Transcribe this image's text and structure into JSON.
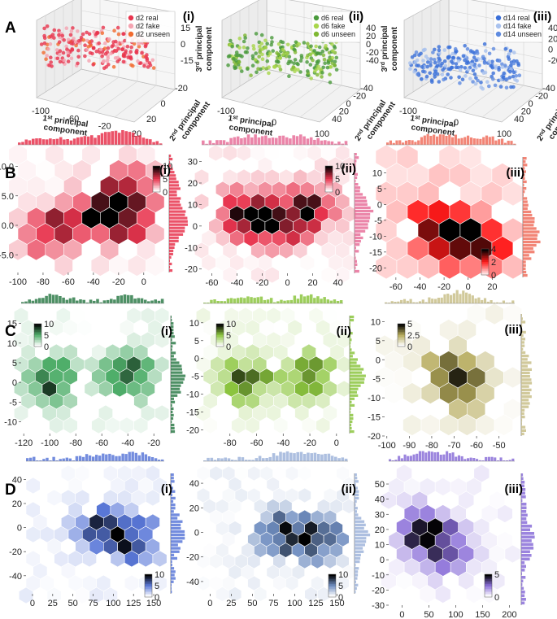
{
  "panel_labels": [
    "A",
    "B",
    "C",
    "D"
  ],
  "roman": [
    "(i)",
    "(ii)",
    "(iii)"
  ],
  "chart_data": [
    {
      "type": "scatter",
      "id": "A-i",
      "panel": "A",
      "roman": "(i)",
      "zlabel": "3rd principal component",
      "zlabel_parts": [
        "3",
        "rd",
        "principal",
        "component"
      ],
      "xlabel_parts": [
        "1",
        "st",
        "principal",
        "component"
      ],
      "ylabel_parts": [
        "2",
        "nd",
        "principal",
        "component"
      ],
      "xticks": [
        "-100",
        "-60",
        "-20",
        "20"
      ],
      "yticks": [
        "20",
        "0",
        "-20"
      ],
      "zticks": [
        "15",
        "0",
        "-15"
      ],
      "legend": [
        {
          "label": "d2 real",
          "color": "#e8344e"
        },
        {
          "label": "d2 fake",
          "color": "#f5a3b0"
        },
        {
          "label": "d2 unseen",
          "color": "#f26a2e"
        }
      ]
    },
    {
      "type": "scatter",
      "id": "A-ii",
      "panel": "A",
      "roman": "(ii)",
      "zlabel_parts": [
        "3",
        "rd",
        "principal",
        "component"
      ],
      "xlabel_parts": [
        "1",
        "st",
        "principal",
        "component"
      ],
      "ylabel_parts": [
        "2",
        "nd",
        "principal",
        "component"
      ],
      "xticks": [
        "-100",
        "0",
        "100"
      ],
      "yticks": [
        "40",
        "20",
        "0",
        "-20",
        "-40"
      ],
      "zticks": [
        "40",
        "20",
        "0",
        "-20",
        "-40"
      ],
      "legend": [
        {
          "label": "d6 real",
          "color": "#4a9a3c"
        },
        {
          "label": "d6 fake",
          "color": "#a8d64a"
        },
        {
          "label": "d6 unseen",
          "color": "#7fb832"
        }
      ]
    },
    {
      "type": "scatter",
      "id": "A-iii",
      "panel": "A",
      "roman": "(iii)",
      "zlabel_parts": [
        "3",
        "rd",
        "principal",
        "component"
      ],
      "xlabel_parts": [
        "1",
        "st",
        "principal",
        "component"
      ],
      "ylabel_parts": [
        "2",
        "nd",
        "principal",
        "component"
      ],
      "xticks": [
        "-100",
        "0",
        "100"
      ],
      "yticks": [
        "40",
        "20",
        "0",
        "-20",
        "-40"
      ],
      "zticks": [
        "40",
        "20",
        "0",
        "-20"
      ],
      "legend": [
        {
          "label": "d14 real",
          "color": "#3a6fd8"
        },
        {
          "label": "d14 fake",
          "color": "#a9c2ee"
        },
        {
          "label": "d14 unseen",
          "color": "#5f8be0"
        }
      ]
    },
    {
      "type": "heatmap",
      "id": "B-i",
      "panel": "B",
      "roman": "(i)",
      "xlim": [
        -100,
        15
      ],
      "ylim": [
        -8,
        12
      ],
      "xticks": [
        -100,
        -80,
        -60,
        -40,
        -20,
        0
      ],
      "yticks": [
        -5,
        0,
        5,
        10
      ],
      "ytick_labels": [
        "-5.0",
        "0.0",
        "5.0",
        "10.0"
      ],
      "cbar": {
        "ticks": [
          10,
          5,
          0
        ],
        "colors": [
          "#ffffff",
          "#e8344e",
          "#000000"
        ]
      }
    },
    {
      "type": "heatmap",
      "id": "B-ii",
      "panel": "B",
      "roman": "(ii)",
      "xlim": [
        -68,
        48
      ],
      "ylim": [
        -22,
        34
      ],
      "xticks": [
        -60,
        -40,
        -20,
        0,
        20,
        40
      ],
      "yticks": [
        -20,
        -10,
        0,
        10,
        20,
        30
      ],
      "cbar": {
        "ticks": [
          10,
          5,
          0
        ],
        "colors": [
          "#ffffff",
          "#e8344e",
          "#000000"
        ]
      }
    },
    {
      "type": "heatmap",
      "id": "B-iii",
      "panel": "B",
      "roman": "(iii)",
      "xlim": [
        -68,
        40
      ],
      "ylim": [
        -23,
        15
      ],
      "xticks": [
        -60,
        -40,
        -20,
        0,
        20
      ],
      "yticks": [
        -20,
        -15,
        -10,
        -5,
        0,
        5,
        10
      ],
      "cbar": {
        "ticks": [
          4,
          2,
          0
        ],
        "colors": [
          "#ffe6e6",
          "#ff1a1a",
          "#000000"
        ]
      }
    },
    {
      "type": "heatmap",
      "id": "C-i",
      "panel": "C",
      "roman": "(i)",
      "xlim": [
        -122,
        -12
      ],
      "ylim": [
        -13,
        17
      ],
      "xticks": [
        -120,
        -100,
        -80,
        -60,
        -40,
        -20
      ],
      "yticks": [
        -10,
        -5,
        0,
        5,
        10,
        15
      ],
      "cbar": {
        "ticks": [
          10,
          5,
          0
        ],
        "colors": [
          "#ffffff",
          "#4fae6a",
          "#000000"
        ]
      }
    },
    {
      "type": "heatmap",
      "id": "C-ii",
      "panel": "C",
      "roman": "(ii)",
      "xlim": [
        -100,
        5
      ],
      "ylim": [
        -21,
        12
      ],
      "xticks": [
        -80,
        -60,
        -40,
        -20,
        0
      ],
      "yticks": [
        -20,
        -15,
        -10,
        -5,
        0,
        5,
        10
      ],
      "cbar": {
        "ticks": [
          10,
          5,
          0
        ],
        "colors": [
          "#ffffff",
          "#8cc63f",
          "#000000"
        ]
      }
    },
    {
      "type": "heatmap",
      "id": "C-iii",
      "panel": "C",
      "roman": "(iii)",
      "xlim": [
        -101,
        -43
      ],
      "ylim": [
        -20,
        12
      ],
      "xticks": [
        -100,
        -90,
        -80,
        -70,
        -60,
        -50
      ],
      "yticks": [
        -20,
        -15,
        -10,
        -5,
        0,
        5,
        10
      ],
      "cbar": {
        "ticks": [
          5,
          2.5,
          0
        ],
        "colors": [
          "#ffffff",
          "#b5aa5a",
          "#000000"
        ]
      }
    },
    {
      "type": "heatmap",
      "id": "D-i",
      "panel": "D",
      "roman": "(i)",
      "xlim": [
        -8,
        163
      ],
      "ylim": [
        -55,
        45
      ],
      "xticks": [
        0,
        25,
        50,
        75,
        100,
        125,
        150
      ],
      "yticks": [
        -40,
        -20,
        0,
        20,
        40
      ],
      "cbar": {
        "ticks": [
          10,
          5,
          0
        ],
        "colors": [
          "#ffffff",
          "#5a78d8",
          "#000000"
        ]
      }
    },
    {
      "type": "heatmap",
      "id": "D-ii",
      "panel": "D",
      "roman": "(ii)",
      "xlim": [
        -8,
        163
      ],
      "ylim": [
        -50,
        48
      ],
      "xticks": [
        0,
        25,
        50,
        75,
        100,
        125,
        150
      ],
      "yticks": [
        -40,
        -20,
        0,
        20,
        40
      ],
      "cbar": {
        "ticks": [
          10,
          5,
          0
        ],
        "colors": [
          "#ffffff",
          "#6f8dc0",
          "#000000"
        ]
      }
    },
    {
      "type": "heatmap",
      "id": "D-iii",
      "panel": "D",
      "roman": "(iii)",
      "xlim": [
        -25,
        210
      ],
      "ylim": [
        -30,
        57
      ],
      "xticks": [
        0,
        50,
        100,
        150,
        200
      ],
      "yticks": [
        -30,
        -20,
        -10,
        0,
        10,
        20,
        30,
        40,
        50
      ],
      "cbar": {
        "ticks": [
          5,
          0
        ],
        "colors": [
          "#ffffff",
          "#8a6ed8",
          "#000000"
        ]
      }
    }
  ]
}
